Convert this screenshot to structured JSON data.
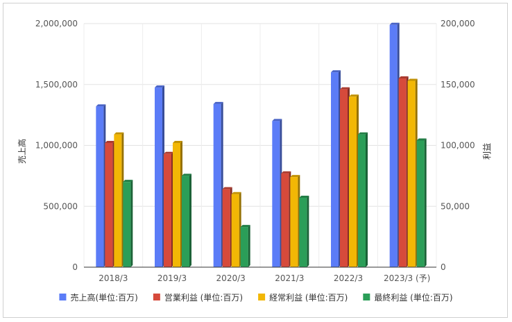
{
  "chart_data": {
    "type": "bar",
    "categories": [
      "2018/3",
      "2019/3",
      "2020/3",
      "2021/3",
      "2022/3",
      "2023/3 (予)"
    ],
    "left_axis": {
      "label": "売上高",
      "ylim": [
        0,
        2000000
      ],
      "ticks": [
        "0",
        "500,000",
        "1,000,000",
        "1,500,000",
        "2,000,000"
      ]
    },
    "right_axis": {
      "label": "利益",
      "ylim": [
        0,
        200000
      ],
      "ticks": [
        "0",
        "50,000",
        "100,000",
        "150,000",
        "200,000"
      ]
    },
    "grid": true,
    "legend_position": "bottom",
    "series": [
      {
        "name": "売上高(単位:百万)",
        "axis": "left",
        "color": "#5b7cf7",
        "values": [
          1320000,
          1475000,
          1340000,
          1200000,
          1600000,
          1990000
        ]
      },
      {
        "name": "営業利益 (単位:百万)",
        "axis": "right",
        "color": "#d64a3b",
        "values": [
          102000,
          93000,
          64000,
          77000,
          146000,
          155000
        ]
      },
      {
        "name": "経常利益 (単位:百万)",
        "axis": "right",
        "color": "#f2b705",
        "values": [
          109000,
          102000,
          60000,
          74000,
          140000,
          153000
        ]
      },
      {
        "name": "最終利益 (単位:百万)",
        "axis": "right",
        "color": "#2b9e58",
        "values": [
          70000,
          75000,
          33000,
          57000,
          109000,
          104000
        ]
      }
    ]
  }
}
